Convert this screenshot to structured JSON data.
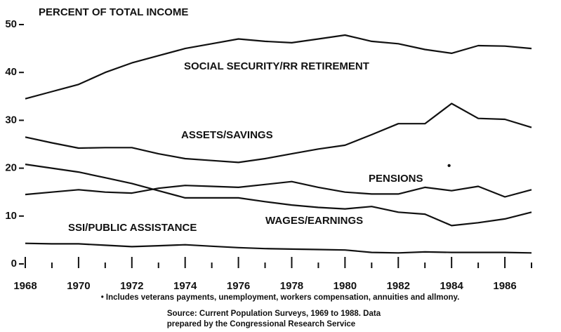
{
  "chart_data": {
    "type": "line",
    "title": "PERCENT OF TOTAL INCOME",
    "x": [
      1968,
      1969,
      1970,
      1971,
      1972,
      1973,
      1974,
      1975,
      1976,
      1977,
      1978,
      1979,
      1980,
      1981,
      1982,
      1983,
      1984,
      1985,
      1986,
      1987
    ],
    "series": [
      {
        "name": "SOCIAL SECURITY/RR RETIREMENT",
        "color": "#111111",
        "values": [
          34.5,
          36,
          37.5,
          40,
          42,
          43.5,
          45,
          46,
          47,
          46.5,
          46.2,
          47,
          47.8,
          46.5,
          46,
          44.8,
          44,
          45.6,
          45.5,
          45
        ]
      },
      {
        "name": "ASSETS/SAVINGS",
        "color": "#111111",
        "values": [
          26.5,
          25.3,
          24.2,
          24.3,
          24.3,
          23,
          22,
          21.6,
          21.2,
          22,
          23,
          24,
          24.8,
          27,
          29.3,
          29.3,
          33.5,
          30.4,
          30.2,
          28.5
        ]
      },
      {
        "name": "PENSIONS",
        "color": "#111111",
        "values": [
          14.5,
          15,
          15.5,
          15,
          14.8,
          15.8,
          16.4,
          16.2,
          16,
          16.6,
          17.2,
          16,
          15,
          14.6,
          14.6,
          16,
          15.3,
          16.2,
          14,
          15.5
        ]
      },
      {
        "name": "WAGES/EARNINGS",
        "color": "#111111",
        "values": [
          20.8,
          20,
          19.2,
          18,
          16.8,
          15.3,
          13.8,
          13.8,
          13.8,
          13,
          12.3,
          11.8,
          11.5,
          12,
          10.8,
          10.4,
          8,
          8.6,
          9.4,
          10.8
        ]
      },
      {
        "name": "SSI/PUBLIC ASSISTANCE",
        "color": "#111111",
        "values": [
          4.3,
          4.2,
          4.2,
          3.9,
          3.6,
          3.8,
          4,
          3.7,
          3.4,
          3.2,
          3.1,
          3,
          2.9,
          2.4,
          2.3,
          2.5,
          2.4,
          2.4,
          2.4,
          2.3
        ]
      }
    ],
    "annotations": [
      "•"
    ],
    "footnote": "• Includes veterans payments, unemployment, workers compensation, annuities and allmony.",
    "source": [
      "Source: Current Population Surveys, 1969 to 1988. Data",
      "prepared by the Congressional Research Service"
    ],
    "xlim": [
      1968,
      1987
    ],
    "xticks": [
      1968,
      1970,
      1972,
      1974,
      1976,
      1978,
      1980,
      1982,
      1984,
      1986
    ],
    "xminor_ticks": [
      1969,
      1971,
      1973,
      1975,
      1977,
      1979,
      1981,
      1983,
      1985,
      1987
    ],
    "ylim": [
      0,
      50
    ],
    "yticks": [
      0,
      10,
      20,
      30,
      40,
      50
    ],
    "grid": false
  }
}
